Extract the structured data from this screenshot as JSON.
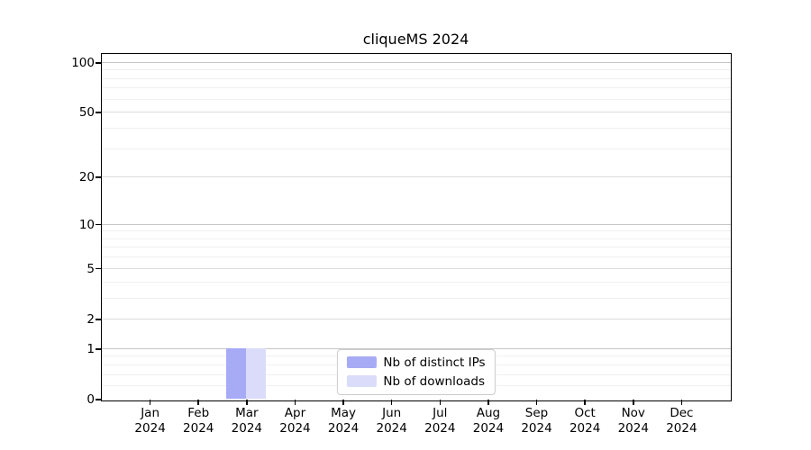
{
  "title": "cliqueMS 2024",
  "chart_data": {
    "type": "bar",
    "title": "cliqueMS 2024",
    "categories": [
      "Jan 2024",
      "Feb 2024",
      "Mar 2024",
      "Apr 2024",
      "May 2024",
      "Jun 2024",
      "Jul 2024",
      "Aug 2024",
      "Sep 2024",
      "Oct 2024",
      "Nov 2024",
      "Dec 2024"
    ],
    "series": [
      {
        "name": "Nb of distinct IPs",
        "color": "#a7aaf5",
        "values": [
          0,
          0,
          1,
          0,
          0,
          0,
          0,
          0,
          0,
          0,
          0,
          0
        ]
      },
      {
        "name": "Nb of downloads",
        "color": "#dadcf9",
        "values": [
          0,
          0,
          1,
          0,
          0,
          0,
          0,
          0,
          0,
          0,
          0,
          0
        ]
      }
    ],
    "y_axis": {
      "scale": "log1p",
      "ticks": [
        0,
        1,
        2,
        5,
        10,
        20,
        50,
        100
      ],
      "strong_gridlines": [
        1,
        10,
        100
      ],
      "minor_gridlines": [
        0.2,
        0.4,
        0.6,
        0.8,
        3,
        4,
        6,
        7,
        8,
        9,
        30,
        40,
        60,
        70,
        80,
        90
      ],
      "max": 113
    },
    "legend": {
      "position": "lower center"
    },
    "grid": true
  },
  "colors": {
    "background": "#ffffff",
    "axis": "#000000",
    "grid_strong": "#c6c6c6",
    "grid_major": "#dcdcdc",
    "grid_minor": "#f0f0f0",
    "legend_border": "#cccccc",
    "bar_distinct_ips": "#a7aaf5",
    "bar_downloads": "#dadcf9"
  }
}
